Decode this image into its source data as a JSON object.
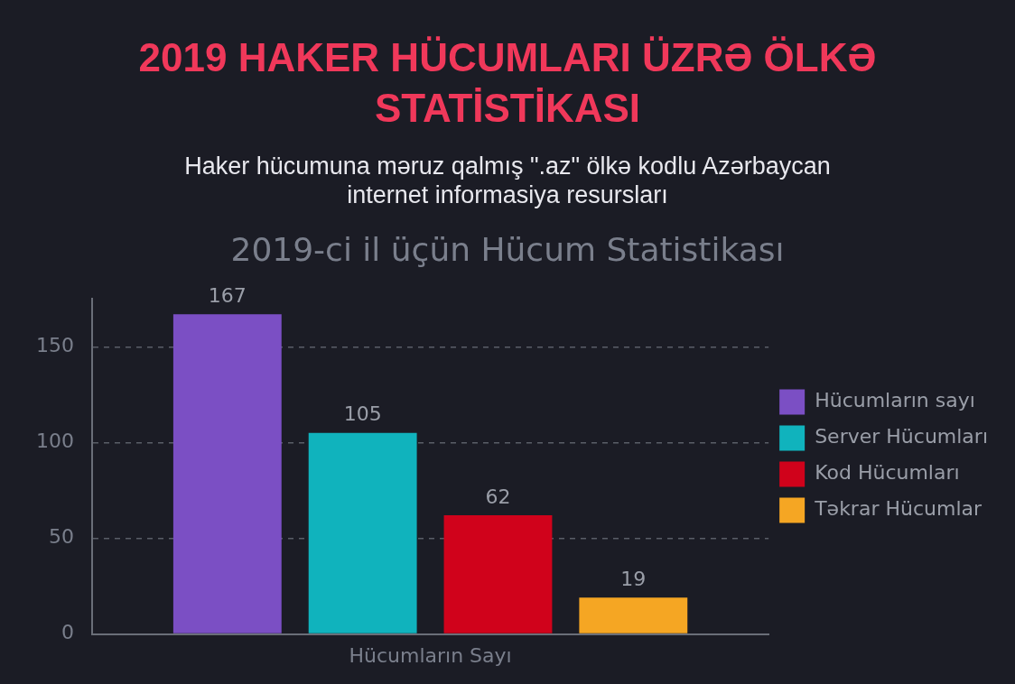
{
  "chart_data": {
    "type": "bar",
    "title": "2019 HAKER HÜCUMLARI ÜZRƏ ÖLKƏ STATİSTİKASI",
    "subtitle": "Haker hücumuna məruz qalmış \".az\" ölkə kodlu Azərbaycan internet informasiya resursları",
    "annotations": [
      "2019-ci il üçün Hücum Statistikası"
    ],
    "categories": [
      "Hücumların Sayı"
    ],
    "series": [
      {
        "name": "Hücumların sayı",
        "color": "#7b4fc4",
        "values": [
          167
        ]
      },
      {
        "name": "Server Hücumları",
        "color": "#10b3bd",
        "values": [
          105
        ]
      },
      {
        "name": "Kod Hücumları",
        "color": "#d0021b",
        "values": [
          62
        ]
      },
      {
        "name": "Təkrar Hücumlar",
        "color": "#f5a623",
        "values": [
          19
        ]
      }
    ],
    "ylim": [
      0,
      175
    ],
    "yticks": [
      0,
      50,
      100,
      150
    ],
    "grid": "y",
    "legend": "right",
    "data_labels": true
  }
}
